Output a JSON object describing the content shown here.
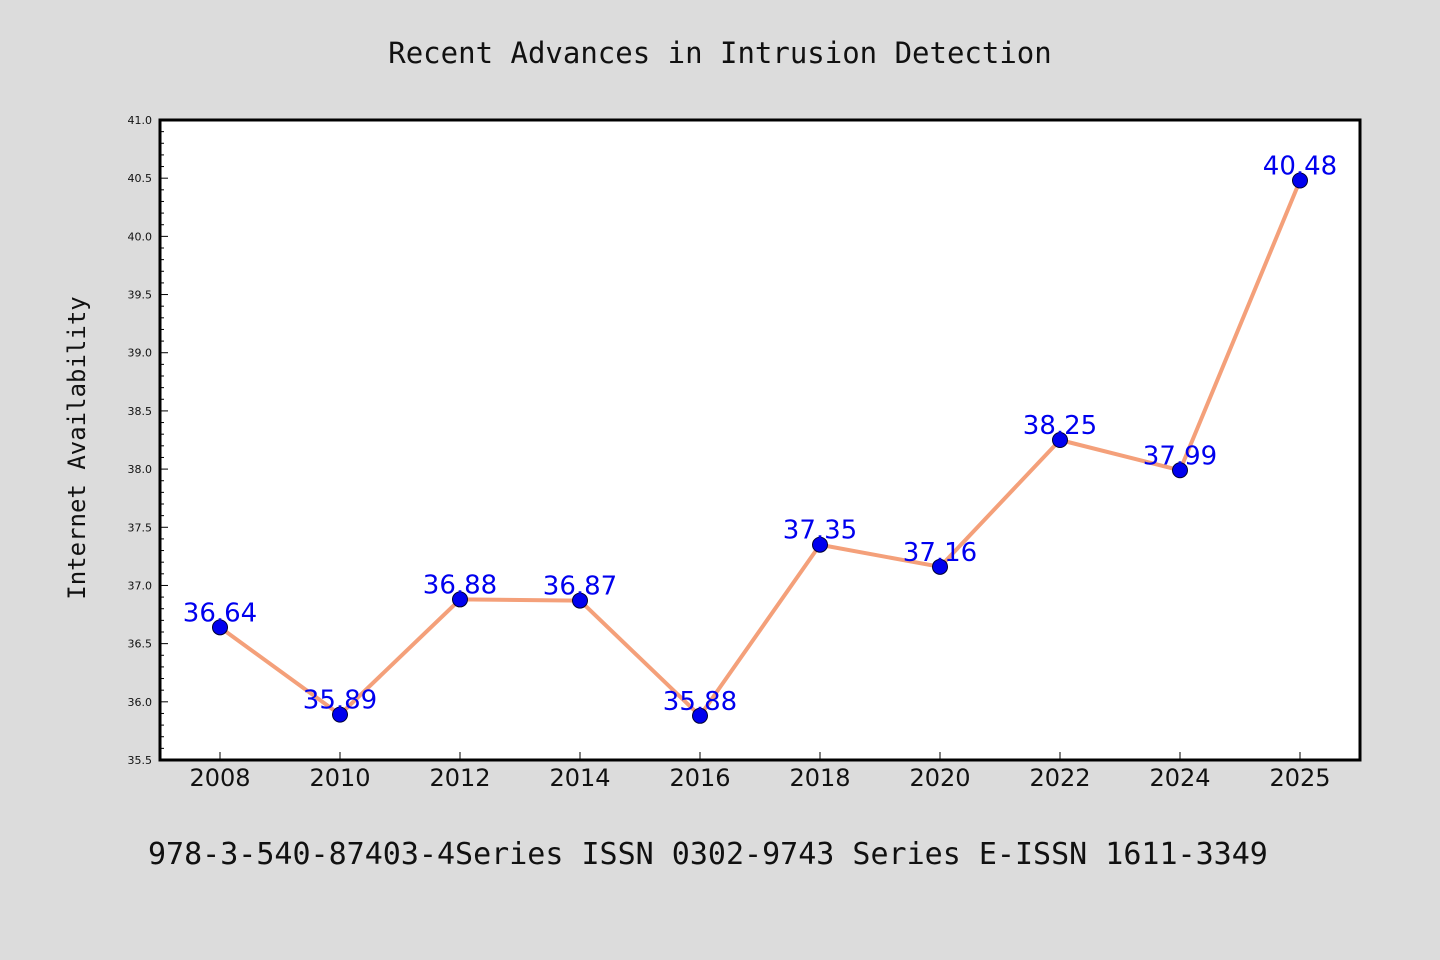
{
  "chart_data": {
    "type": "line",
    "title": "Recent Advances in Intrusion Detection",
    "xlabel": "",
    "ylabel": "Internet Availability",
    "footer": "978-3-540-87403-4Series ISSN 0302-9743 Series E-ISSN 1611-3349",
    "categories": [
      "2008",
      "2010",
      "2012",
      "2014",
      "2016",
      "2018",
      "2020",
      "2022",
      "2024",
      "2025"
    ],
    "series": [
      {
        "values": [
          36.64,
          35.89,
          36.88,
          36.87,
          35.88,
          37.35,
          37.16,
          38.25,
          37.99,
          40.48
        ],
        "data_labels": [
          "36.64",
          "35.89",
          "36.88",
          "36.87",
          "35.88",
          "37.35",
          "37.16",
          "38.25",
          "37.99",
          "40.48"
        ]
      }
    ],
    "ylim": [
      35.5,
      41.0
    ],
    "yticks": [
      "35.5",
      "36.0",
      "36.5",
      "37.0",
      "37.5",
      "38.0",
      "38.5",
      "39.0",
      "39.5",
      "40.0",
      "40.5",
      "41.0"
    ],
    "grid": false,
    "legend": "none",
    "colors": {
      "background": "#dcdcdc",
      "plot_background": "#ffffff",
      "line": "#f4a07a",
      "marker": "#0000ee",
      "data_label": "#0000ee",
      "axis": "#000000"
    }
  }
}
